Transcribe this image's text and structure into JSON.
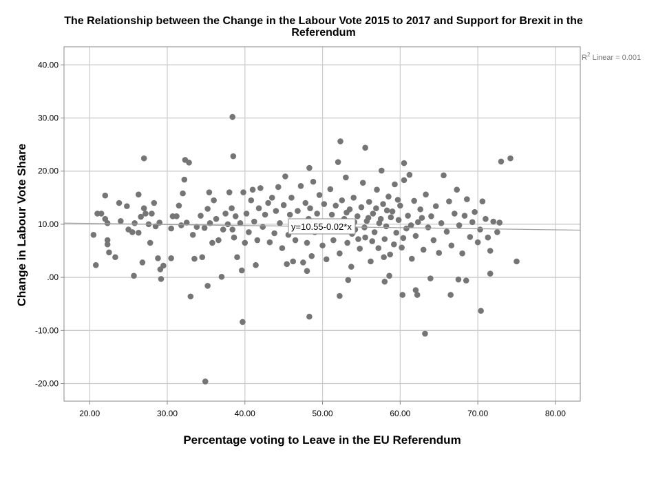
{
  "chart_data": {
    "type": "scatter",
    "title": "The Relationship between the Change in the Labour Vote 2015 to 2017 and Support for Brexit in the Referendum",
    "title_lines": [
      "The Relationship between the Change in the Labour Vote 2015 to 2017 and Support for Brexit in the",
      "Referendum"
    ],
    "xlabel": "Percentage voting to Leave in the EU Referendum",
    "ylabel": "Change in Labour Vote Share",
    "xlim": [
      16.7,
      83.2
    ],
    "ylim": [
      -23.3,
      43.4
    ],
    "x_ticks": [
      20,
      30,
      40,
      50,
      60,
      70,
      80
    ],
    "x_tick_labels": [
      "20.00",
      "30.00",
      "40.00",
      "50.00",
      "60.00",
      "70.00",
      "80.00"
    ],
    "y_ticks": [
      40,
      30,
      20,
      10,
      0,
      -10,
      -20
    ],
    "y_tick_labels": [
      "40.00",
      "30.00",
      "20.00",
      "10.00",
      ".00",
      "-10.00",
      "-20.00"
    ],
    "grid": true,
    "marker_color": "#757575",
    "fit_line": {
      "intercept": 10.55,
      "slope": -0.02,
      "label": "y=10.55-0.02*x",
      "color": "#a0a0a0"
    },
    "r2_label": {
      "prefix": "R",
      "sup": "2",
      "text": " Linear = 0.001"
    },
    "points": [
      [
        38.4,
        30.2
      ],
      [
        38.5,
        22.8
      ],
      [
        27,
        22.4
      ],
      [
        32.3,
        22.1
      ],
      [
        32.8,
        21.6
      ],
      [
        52.3,
        25.6
      ],
      [
        55.5,
        24.4
      ],
      [
        52,
        21.7
      ],
      [
        48.3,
        20.6
      ],
      [
        57.6,
        20.1
      ],
      [
        60.5,
        21.5
      ],
      [
        73,
        21.8
      ],
      [
        74.2,
        22.4
      ],
      [
        75,
        3
      ],
      [
        70.4,
        -6.3
      ],
      [
        63.2,
        -10.6
      ],
      [
        48.3,
        -7.4
      ],
      [
        39.7,
        -8.4
      ],
      [
        34.9,
        -19.6
      ],
      [
        33,
        -3.6
      ],
      [
        35.2,
        -1.6
      ],
      [
        37,
        0.1
      ],
      [
        39.6,
        1.3
      ],
      [
        29.2,
        -0.3
      ],
      [
        25.7,
        0.3
      ],
      [
        20.8,
        2.3
      ],
      [
        20.5,
        8
      ],
      [
        52.2,
        -3.5
      ],
      [
        53.3,
        -0.5
      ],
      [
        60.3,
        -3.3
      ],
      [
        62,
        -2.4
      ],
      [
        62.2,
        -3.3
      ],
      [
        66.5,
        -3.3
      ],
      [
        63.9,
        -0.2
      ],
      [
        67.5,
        -0.4
      ],
      [
        68.5,
        -0.6
      ],
      [
        71.6,
        0.7
      ],
      [
        58,
        -0.8
      ],
      [
        58.6,
        0.3
      ],
      [
        48,
        1.2
      ],
      [
        21,
        12
      ],
      [
        21.5,
        12
      ],
      [
        22,
        15.4
      ],
      [
        22,
        11
      ],
      [
        22.3,
        10.2
      ],
      [
        22.3,
        7
      ],
      [
        22.3,
        6.2
      ],
      [
        22.5,
        4.7
      ],
      [
        23.3,
        3.8
      ],
      [
        23.8,
        14
      ],
      [
        24,
        10.6
      ],
      [
        24.8,
        13.4
      ],
      [
        25,
        9
      ],
      [
        25.5,
        8.5
      ],
      [
        25.8,
        10.2
      ],
      [
        26.3,
        15.6
      ],
      [
        26.3,
        8.4
      ],
      [
        26.6,
        11.4
      ],
      [
        26.8,
        2.8
      ],
      [
        27,
        13
      ],
      [
        27.2,
        12
      ],
      [
        27.6,
        10
      ],
      [
        27.8,
        6.5
      ],
      [
        28,
        12
      ],
      [
        28.3,
        14
      ],
      [
        28.5,
        9.6
      ],
      [
        28.8,
        3.6
      ],
      [
        29,
        10.3
      ],
      [
        29.1,
        1.5
      ],
      [
        29.5,
        2.2
      ],
      [
        30.5,
        3.6
      ],
      [
        30.5,
        9.2
      ],
      [
        30.7,
        11.5
      ],
      [
        31.2,
        11.5
      ],
      [
        31.5,
        13.5
      ],
      [
        31.8,
        9.8
      ],
      [
        32,
        15.8
      ],
      [
        32.2,
        18.4
      ],
      [
        32.5,
        10.3
      ],
      [
        33.3,
        8
      ],
      [
        33.5,
        3.5
      ],
      [
        33.8,
        9.5
      ],
      [
        34.3,
        11.6
      ],
      [
        34.5,
        3.8
      ],
      [
        34.8,
        9.3
      ],
      [
        35.2,
        12.9
      ],
      [
        35.4,
        16
      ],
      [
        35.5,
        10.2
      ],
      [
        35.8,
        6.5
      ],
      [
        36,
        14.5
      ],
      [
        36.3,
        11
      ],
      [
        36.6,
        7
      ],
      [
        37.2,
        9
      ],
      [
        37.5,
        12
      ],
      [
        37.8,
        10
      ],
      [
        38,
        16
      ],
      [
        38.3,
        13
      ],
      [
        38.4,
        9
      ],
      [
        38.6,
        7.5
      ],
      [
        38.8,
        11.5
      ],
      [
        39,
        3.8
      ],
      [
        39.4,
        10.2
      ],
      [
        39.8,
        16
      ],
      [
        40,
        6.5
      ],
      [
        40.2,
        12
      ],
      [
        40.5,
        8.5
      ],
      [
        40.8,
        14.5
      ],
      [
        41,
        16.5
      ],
      [
        41.2,
        10.5
      ],
      [
        41.4,
        2.3
      ],
      [
        41.6,
        7
      ],
      [
        41.8,
        13
      ],
      [
        42,
        16.8
      ],
      [
        42.3,
        9.5
      ],
      [
        42.6,
        11.8
      ],
      [
        43,
        14
      ],
      [
        43.2,
        6.6
      ],
      [
        43.5,
        15
      ],
      [
        43.8,
        8.3
      ],
      [
        44,
        12.5
      ],
      [
        44.3,
        17
      ],
      [
        44.5,
        10.2
      ],
      [
        44.8,
        5.5
      ],
      [
        45,
        13.6
      ],
      [
        45.2,
        19
      ],
      [
        45.4,
        2.5
      ],
      [
        45.6,
        8
      ],
      [
        45.8,
        11.8
      ],
      [
        46,
        15
      ],
      [
        46.2,
        3
      ],
      [
        46.5,
        7
      ],
      [
        46.8,
        12.5
      ],
      [
        47,
        9.5
      ],
      [
        47.2,
        17.2
      ],
      [
        47.5,
        2.8
      ],
      [
        47.8,
        14
      ],
      [
        48,
        6.5
      ],
      [
        48.2,
        11
      ],
      [
        48.4,
        13
      ],
      [
        48.6,
        4
      ],
      [
        48.8,
        18
      ],
      [
        49,
        8.5
      ],
      [
        49.3,
        12
      ],
      [
        49.6,
        15.5
      ],
      [
        49.8,
        10
      ],
      [
        50,
        6
      ],
      [
        50.2,
        13.8
      ],
      [
        50.5,
        3.4
      ],
      [
        50.7,
        9.3
      ],
      [
        51,
        16.6
      ],
      [
        51.2,
        11.8
      ],
      [
        51.4,
        7
      ],
      [
        51.7,
        13.5
      ],
      [
        52,
        9.6
      ],
      [
        52.2,
        4.5
      ],
      [
        52.5,
        14.5
      ],
      [
        52.8,
        11
      ],
      [
        53,
        18.8
      ],
      [
        53.2,
        6.5
      ],
      [
        53.5,
        12.8
      ],
      [
        53.7,
        2
      ],
      [
        54,
        15
      ],
      [
        54.2,
        9
      ],
      [
        54.5,
        11.5
      ],
      [
        54.8,
        5.4
      ],
      [
        55,
        13.2
      ],
      [
        55.2,
        17.8
      ],
      [
        55.5,
        7.5
      ],
      [
        55.7,
        10.6
      ],
      [
        56,
        14.2
      ],
      [
        56.2,
        3
      ],
      [
        56.5,
        12
      ],
      [
        56.7,
        8.5
      ],
      [
        57,
        16.5
      ],
      [
        57.2,
        5.5
      ],
      [
        57.5,
        11
      ],
      [
        57.8,
        13.8
      ],
      [
        58,
        7.2
      ],
      [
        58.2,
        9.6
      ],
      [
        58.5,
        15.2
      ],
      [
        58.7,
        4.3
      ],
      [
        59,
        12.4
      ],
      [
        59.3,
        17.5
      ],
      [
        59.5,
        8.4
      ],
      [
        59.8,
        10.8
      ],
      [
        60,
        13.5
      ],
      [
        60.2,
        5.6
      ],
      [
        60.5,
        18.3
      ],
      [
        60.8,
        9.2
      ],
      [
        61,
        11.6
      ],
      [
        61.2,
        19.3
      ],
      [
        61.5,
        3.5
      ],
      [
        61.8,
        14.4
      ],
      [
        62,
        7.8
      ],
      [
        62.3,
        10.4
      ],
      [
        62.6,
        12.8
      ],
      [
        63,
        5.2
      ],
      [
        63.3,
        15.6
      ],
      [
        63.6,
        9.4
      ],
      [
        64,
        11.5
      ],
      [
        64.3,
        7
      ],
      [
        64.6,
        13.4
      ],
      [
        65,
        4.6
      ],
      [
        65.3,
        10.2
      ],
      [
        65.6,
        19.2
      ],
      [
        66,
        8.6
      ],
      [
        66.3,
        14.3
      ],
      [
        66.6,
        6
      ],
      [
        67,
        12
      ],
      [
        67.3,
        16.5
      ],
      [
        67.6,
        9.8
      ],
      [
        68,
        4.5
      ],
      [
        68.3,
        11.6
      ],
      [
        68.6,
        14.7
      ],
      [
        69,
        7.6
      ],
      [
        69.3,
        10.4
      ],
      [
        69.6,
        12.3
      ],
      [
        70,
        6.6
      ],
      [
        70.3,
        9
      ],
      [
        70.6,
        14.3
      ],
      [
        71,
        11
      ],
      [
        71.3,
        7.5
      ],
      [
        71.6,
        5
      ],
      [
        72,
        10.5
      ],
      [
        72.5,
        8.5
      ],
      [
        72.8,
        10.3
      ],
      [
        53.8,
        8.2
      ],
      [
        54.6,
        7.2
      ],
      [
        55.4,
        9.4
      ],
      [
        56.4,
        6.8
      ],
      [
        57.3,
        10.2
      ],
      [
        58.3,
        12.6
      ],
      [
        59.2,
        6.2
      ],
      [
        60.4,
        7.4
      ],
      [
        57.9,
        3.8
      ],
      [
        56.9,
        13
      ],
      [
        55.9,
        11.2
      ],
      [
        54.1,
        10.4
      ],
      [
        53.1,
        12.2
      ],
      [
        58.8,
        11.3
      ],
      [
        59.7,
        14.6
      ],
      [
        61.4,
        9.8
      ],
      [
        62.8,
        11.2
      ]
    ]
  }
}
